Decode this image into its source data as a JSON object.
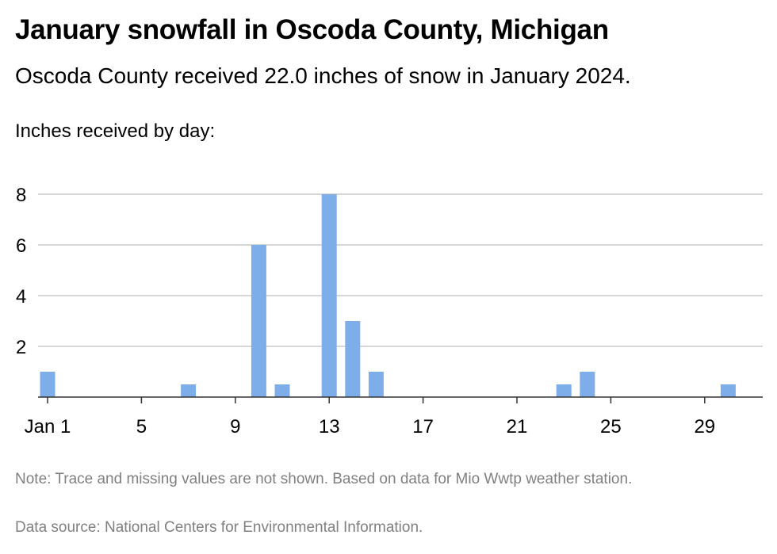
{
  "title": "January snowfall in Oscoda County, Michigan",
  "subtitle": "Oscoda County received 22.0 inches of snow in January 2024.",
  "ylabel": "Inches received by day:",
  "note": "Note: Trace and missing values are not shown. Based on data for Mio Wwtp weather station.",
  "source": "Data source: National Centers for Environmental Information.",
  "colors": {
    "bar": "#7eaeea",
    "grid": "#bfbfbf",
    "axis": "#333333"
  },
  "chart_data": {
    "type": "bar",
    "title": "January snowfall in Oscoda County, Michigan",
    "subtitle": "Oscoda County received 22.0 inches of snow in January 2024.",
    "ylabel": "Inches received by day:",
    "xlabel": "",
    "ylim": [
      0,
      8
    ],
    "yticks": [
      2,
      4,
      6,
      8
    ],
    "xticks": [
      {
        "day": 1,
        "label": "Jan 1"
      },
      {
        "day": 5,
        "label": "5"
      },
      {
        "day": 9,
        "label": "9"
      },
      {
        "day": 13,
        "label": "13"
      },
      {
        "day": 17,
        "label": "17"
      },
      {
        "day": 21,
        "label": "21"
      },
      {
        "day": 25,
        "label": "25"
      },
      {
        "day": 29,
        "label": "29"
      }
    ],
    "grid": true,
    "days": [
      1,
      7,
      10,
      11,
      13,
      14,
      15,
      23,
      24,
      30
    ],
    "values": [
      1,
      0.5,
      6,
      0.5,
      8,
      3,
      1,
      0.5,
      1,
      0.5
    ]
  }
}
